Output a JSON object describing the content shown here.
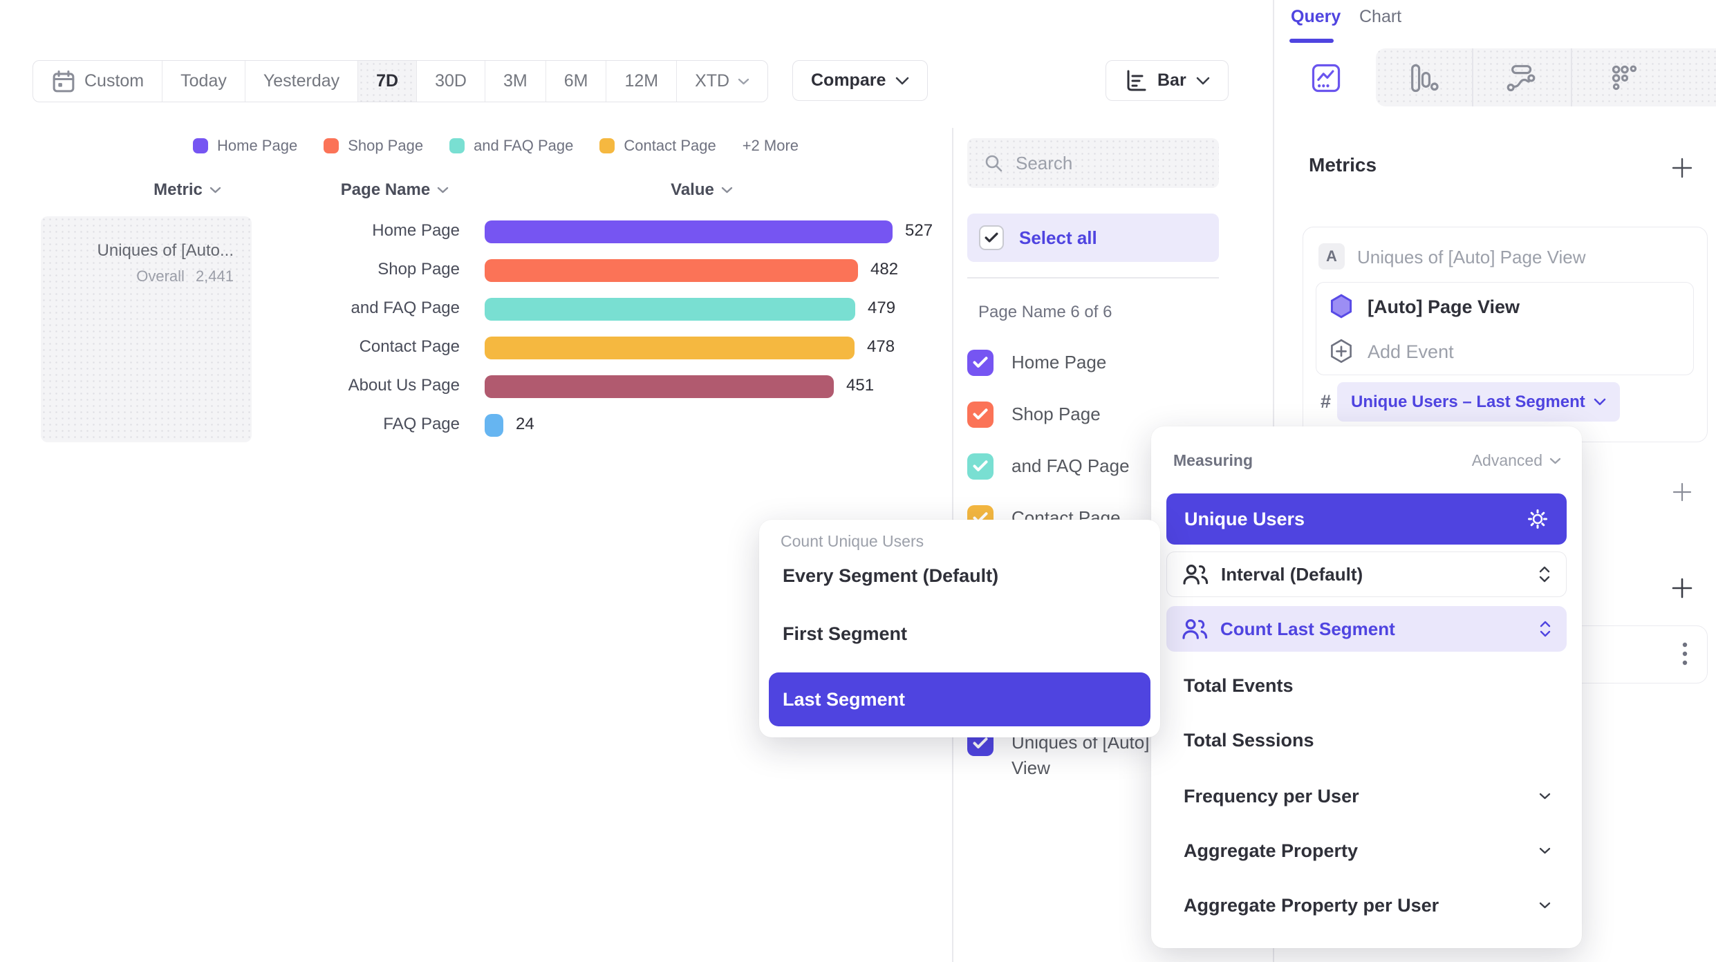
{
  "accent_color": "#4F44E0",
  "toolbar": {
    "date_ranges": [
      "Custom",
      "Today",
      "Yesterday",
      "7D",
      "30D",
      "3M",
      "6M",
      "12M",
      "XTD"
    ],
    "active_range": "7D",
    "compare_label": "Compare",
    "chart_type": "Bar"
  },
  "legend": {
    "items": [
      {
        "label": "Home Page",
        "color": "#7655F2"
      },
      {
        "label": "Shop Page",
        "color": "#FB7357"
      },
      {
        "label": "and FAQ Page",
        "color": "#79DFD2"
      },
      {
        "label": "Contact Page",
        "color": "#F5B840"
      }
    ],
    "more_label": "+2 More"
  },
  "table": {
    "header": {
      "metric": "Metric",
      "page_name": "Page Name",
      "value": "Value"
    },
    "metric_card": {
      "name": "Uniques of [Auto...",
      "overall_label": "Overall",
      "overall_value": "2,441"
    },
    "rows": [
      {
        "page": "Home Page",
        "value": 527,
        "color": "#7655F2"
      },
      {
        "page": "Shop Page",
        "value": 482,
        "color": "#FB7357"
      },
      {
        "page": "and FAQ Page",
        "value": 479,
        "color": "#79DFD2"
      },
      {
        "page": "Contact Page",
        "value": 478,
        "color": "#F5B840"
      },
      {
        "page": "About Us Page",
        "value": 451,
        "color": "#B15A6F"
      },
      {
        "page": "FAQ Page",
        "value": 24,
        "color": "#66B5F1"
      }
    ]
  },
  "chart_data": {
    "type": "bar",
    "orientation": "horizontal",
    "title": "Uniques of [Auto] Page View — Overall 2,441",
    "categories": [
      "Home Page",
      "Shop Page",
      "and FAQ Page",
      "Contact Page",
      "About Us Page",
      "FAQ Page"
    ],
    "values": [
      527,
      482,
      479,
      478,
      451,
      24
    ],
    "colors": [
      "#7655F2",
      "#FB7357",
      "#79DFD2",
      "#F5B840",
      "#B15A6F",
      "#66B5F1"
    ],
    "xlabel": "Value",
    "ylabel": "Page Name",
    "xlim": [
      0,
      560
    ],
    "grid": false,
    "legend_position": "top"
  },
  "filter_panel": {
    "search_placeholder": "Search",
    "select_all_label": "Select all",
    "group_label": "Page Name 6 of 6",
    "items": [
      {
        "label": "Home Page",
        "color": "#7655F2",
        "checked": true
      },
      {
        "label": "Shop Page",
        "color": "#FB7357",
        "checked": true
      },
      {
        "label": "and FAQ Page",
        "color": "#79DFD2",
        "checked": true
      },
      {
        "label": "Contact Page",
        "color": "#F5B840",
        "checked": true
      }
    ],
    "overflow_item": {
      "label": "Uniques of [Auto] Page View",
      "color": "#4F44E0",
      "checked": true
    }
  },
  "query_panel": {
    "tabs": [
      "Query",
      "Chart"
    ],
    "active_tab": "Query",
    "report_type_icons": [
      "insights",
      "funnels",
      "flows",
      "retention"
    ],
    "metrics_heading": "Metrics",
    "metric_row_badge": "A",
    "metric_row_label": "Uniques of [Auto] Page View",
    "event_label": "[Auto] Page View",
    "add_event_label": "Add Event",
    "hash_symbol": "#",
    "measurement_pill": "Unique Users – Last Segment"
  },
  "measuring_menu": {
    "title": "Measuring",
    "advanced_label": "Advanced",
    "selected_option": "Unique Users",
    "interval_label": "Interval (Default)",
    "count_segment_label": "Count Last Segment",
    "options": [
      "Total Events",
      "Total Sessions"
    ],
    "expandable_options": [
      "Frequency per User",
      "Aggregate Property",
      "Aggregate Property per User"
    ]
  },
  "segment_menu": {
    "title": "Count Unique Users",
    "options": [
      "Every Segment (Default)",
      "First Segment",
      "Last Segment"
    ],
    "selected": "Last Segment"
  }
}
